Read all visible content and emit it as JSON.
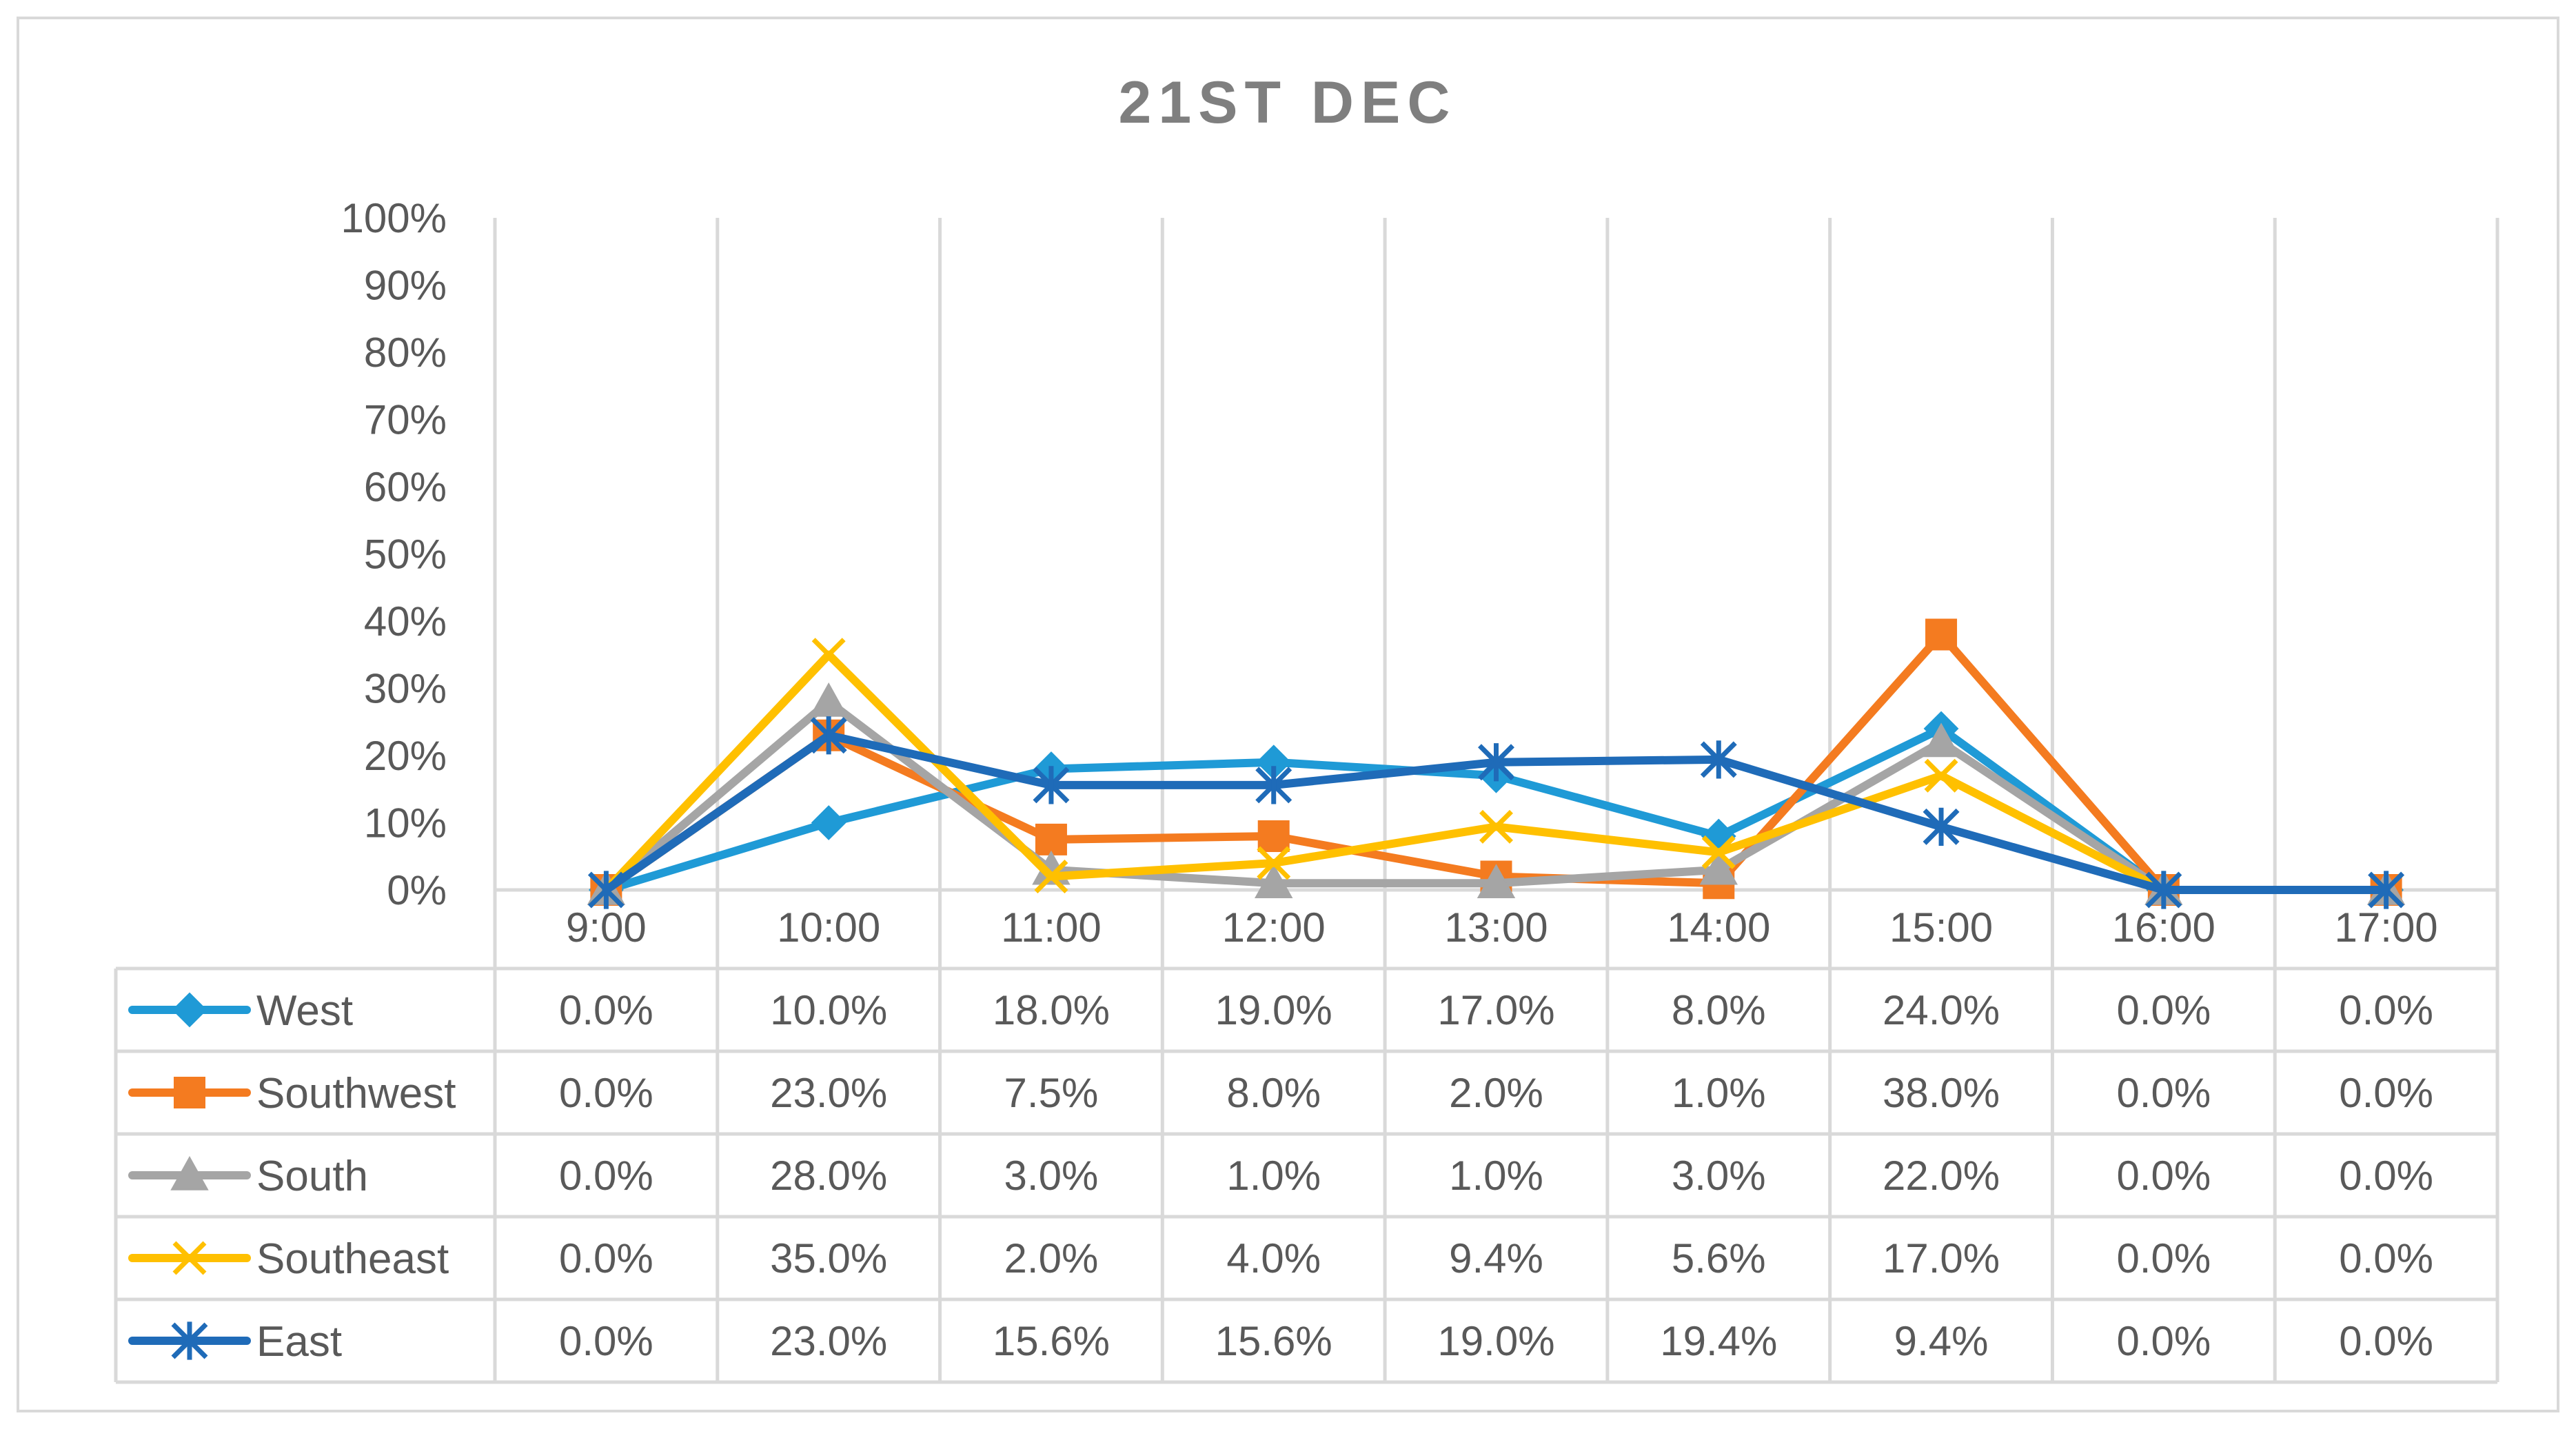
{
  "chart_data": {
    "type": "line",
    "title": "21ST DEC",
    "xlabel": "",
    "ylabel": "",
    "ylim": [
      0,
      100
    ],
    "y_tick_labels": [
      "0%",
      "10%",
      "20%",
      "30%",
      "40%",
      "50%",
      "60%",
      "70%",
      "80%",
      "90%",
      "100%"
    ],
    "categories": [
      "9:00",
      "10:00",
      "11:00",
      "12:00",
      "13:00",
      "14:00",
      "15:00",
      "16:00",
      "17:00"
    ],
    "grid": "vertical",
    "legend_placement": "data-table",
    "series": [
      {
        "name": "West",
        "color": "#1f9ad6",
        "marker": "diamond",
        "values": [
          0,
          10,
          18,
          19,
          17,
          8,
          24,
          0,
          0
        ],
        "labels": [
          "0.0%",
          "10.0%",
          "18.0%",
          "19.0%",
          "17.0%",
          "8.0%",
          "24.0%",
          "0.0%",
          "0.0%"
        ]
      },
      {
        "name": "Southwest",
        "color": "#f47b20",
        "marker": "square",
        "values": [
          0,
          23,
          7.5,
          8,
          2,
          1,
          38,
          0,
          0
        ],
        "labels": [
          "0.0%",
          "23.0%",
          "7.5%",
          "8.0%",
          "2.0%",
          "1.0%",
          "38.0%",
          "0.0%",
          "0.0%"
        ]
      },
      {
        "name": "South",
        "color": "#a5a5a5",
        "marker": "triangle",
        "values": [
          0,
          28,
          3,
          1,
          1,
          3,
          22,
          0,
          0
        ],
        "labels": [
          "0.0%",
          "28.0%",
          "3.0%",
          "1.0%",
          "1.0%",
          "3.0%",
          "22.0%",
          "0.0%",
          "0.0%"
        ]
      },
      {
        "name": "Southeast",
        "color": "#ffc000",
        "marker": "x",
        "values": [
          0,
          35,
          2,
          4,
          9.4,
          5.6,
          17,
          0,
          0
        ],
        "labels": [
          "0.0%",
          "35.0%",
          "2.0%",
          "4.0%",
          "9.4%",
          "5.6%",
          "17.0%",
          "0.0%",
          "0.0%"
        ]
      },
      {
        "name": "East",
        "color": "#1f6bb8",
        "marker": "star",
        "values": [
          0,
          23,
          15.6,
          15.6,
          19,
          19.4,
          9.4,
          0,
          0
        ],
        "labels": [
          "0.0%",
          "23.0%",
          "15.6%",
          "15.6%",
          "19.0%",
          "19.4%",
          "9.4%",
          "0.0%",
          "0.0%"
        ]
      }
    ]
  }
}
